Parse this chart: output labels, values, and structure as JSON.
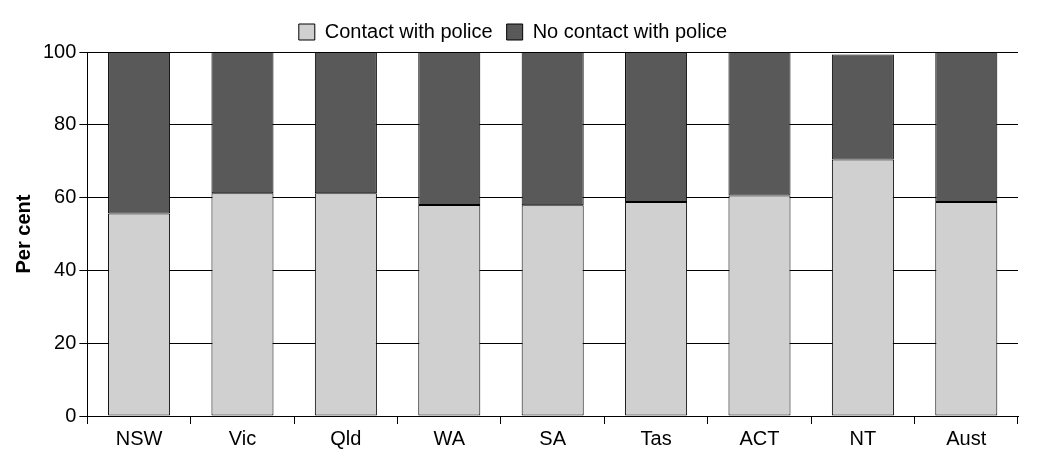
{
  "chart_data": {
    "type": "bar",
    "stacked": true,
    "ylabel": "Per cent",
    "categories": [
      "NSW",
      "Vic",
      "Qld",
      "WA",
      "SA",
      "Tas",
      "ACT",
      "NT",
      "Aust"
    ],
    "series": [
      {
        "name": "Contact with police",
        "color": "#d0d0d0",
        "values": [
          55.6,
          61.2,
          61.2,
          58.0,
          57.9,
          58.8,
          60.6,
          70.5,
          58.8
        ]
      },
      {
        "name": "No contact with police",
        "color": "#595959",
        "values": [
          44.4,
          38.8,
          38.8,
          42.0,
          42.1,
          41.2,
          39.4,
          28.8,
          41.2
        ]
      }
    ],
    "ylim": [
      0,
      100
    ],
    "yticks": [
      0,
      20,
      40,
      60,
      80,
      100
    ],
    "grid": "y",
    "legend": "top"
  }
}
